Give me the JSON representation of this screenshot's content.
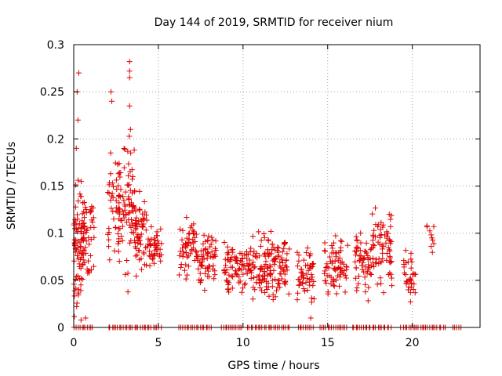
{
  "chart_data": {
    "type": "scatter",
    "title": "Day 144 of 2019, SRMTID for receiver nium",
    "xlabel": "GPS time / hours",
    "ylabel": "SRMTID / TECUs",
    "xlim": [
      0,
      24
    ],
    "ylim": [
      0,
      0.3
    ],
    "x_ticks": [
      0,
      5,
      10,
      15,
      20
    ],
    "x_tick_labels": [
      "0",
      "5",
      "10",
      "15",
      "20"
    ],
    "y_ticks": [
      0,
      0.05,
      0.1,
      0.15,
      0.2,
      0.25,
      0.3
    ],
    "y_tick_labels": [
      "0",
      "0.05",
      "0.1",
      "0.15",
      "0.2",
      "0.25",
      "0.3"
    ],
    "grid": true,
    "marker": "plus",
    "color": "#e00000",
    "clusters": [
      {
        "start": 0.0,
        "end": 0.6,
        "y_center": 0.1,
        "y_spread": 0.055,
        "count": 60
      },
      {
        "start": 0.0,
        "end": 0.5,
        "y_center": 0.05,
        "y_spread": 0.045,
        "count": 25
      },
      {
        "start": 0.5,
        "end": 1.2,
        "y_center": 0.1,
        "y_spread": 0.045,
        "count": 45
      },
      {
        "start": 2.0,
        "end": 3.0,
        "y_center": 0.13,
        "y_spread": 0.06,
        "count": 70
      },
      {
        "start": 3.0,
        "end": 3.6,
        "y_center": 0.12,
        "y_spread": 0.07,
        "count": 55
      },
      {
        "start": 3.6,
        "end": 4.4,
        "y_center": 0.1,
        "y_spread": 0.04,
        "count": 60
      },
      {
        "start": 4.4,
        "end": 5.2,
        "y_center": 0.085,
        "y_spread": 0.025,
        "count": 40
      },
      {
        "start": 6.2,
        "end": 7.4,
        "y_center": 0.085,
        "y_spread": 0.03,
        "count": 60
      },
      {
        "start": 7.4,
        "end": 8.4,
        "y_center": 0.07,
        "y_spread": 0.03,
        "count": 60
      },
      {
        "start": 8.8,
        "end": 10.2,
        "y_center": 0.065,
        "y_spread": 0.03,
        "count": 70
      },
      {
        "start": 10.2,
        "end": 11.5,
        "y_center": 0.065,
        "y_spread": 0.03,
        "count": 80
      },
      {
        "start": 11.5,
        "end": 12.8,
        "y_center": 0.065,
        "y_spread": 0.035,
        "count": 80
      },
      {
        "start": 13.2,
        "end": 14.2,
        "y_center": 0.055,
        "y_spread": 0.03,
        "count": 55
      },
      {
        "start": 14.8,
        "end": 16.2,
        "y_center": 0.065,
        "y_spread": 0.03,
        "count": 75
      },
      {
        "start": 16.6,
        "end": 17.6,
        "y_center": 0.07,
        "y_spread": 0.035,
        "count": 60
      },
      {
        "start": 17.6,
        "end": 18.8,
        "y_center": 0.085,
        "y_spread": 0.04,
        "count": 70
      },
      {
        "start": 19.4,
        "end": 20.2,
        "y_center": 0.055,
        "y_spread": 0.025,
        "count": 35
      },
      {
        "start": 20.8,
        "end": 21.3,
        "y_center": 0.095,
        "y_spread": 0.02,
        "count": 10
      }
    ],
    "outliers": [
      {
        "x": 0.3,
        "y": 0.27
      },
      {
        "x": 0.2,
        "y": 0.25
      },
      {
        "x": 0.25,
        "y": 0.22
      },
      {
        "x": 0.15,
        "y": 0.19
      },
      {
        "x": 2.2,
        "y": 0.25
      },
      {
        "x": 2.25,
        "y": 0.24
      },
      {
        "x": 3.3,
        "y": 0.282
      },
      {
        "x": 3.3,
        "y": 0.272
      },
      {
        "x": 3.3,
        "y": 0.265
      },
      {
        "x": 3.3,
        "y": 0.235
      },
      {
        "x": 3.35,
        "y": 0.21
      },
      {
        "x": 0.7,
        "y": 0.01
      },
      {
        "x": 14.0,
        "y": 0.01
      }
    ],
    "zero_ranges": [
      [
        0.0,
        1.2
      ],
      [
        2.0,
        5.2
      ],
      [
        6.2,
        8.2
      ],
      [
        8.7,
        10.0
      ],
      [
        10.2,
        12.8
      ],
      [
        13.2,
        14.2
      ],
      [
        14.5,
        16.2
      ],
      [
        16.4,
        17.6
      ],
      [
        17.6,
        18.8
      ],
      [
        19.3,
        22.0
      ],
      [
        22.3,
        22.9
      ]
    ]
  }
}
